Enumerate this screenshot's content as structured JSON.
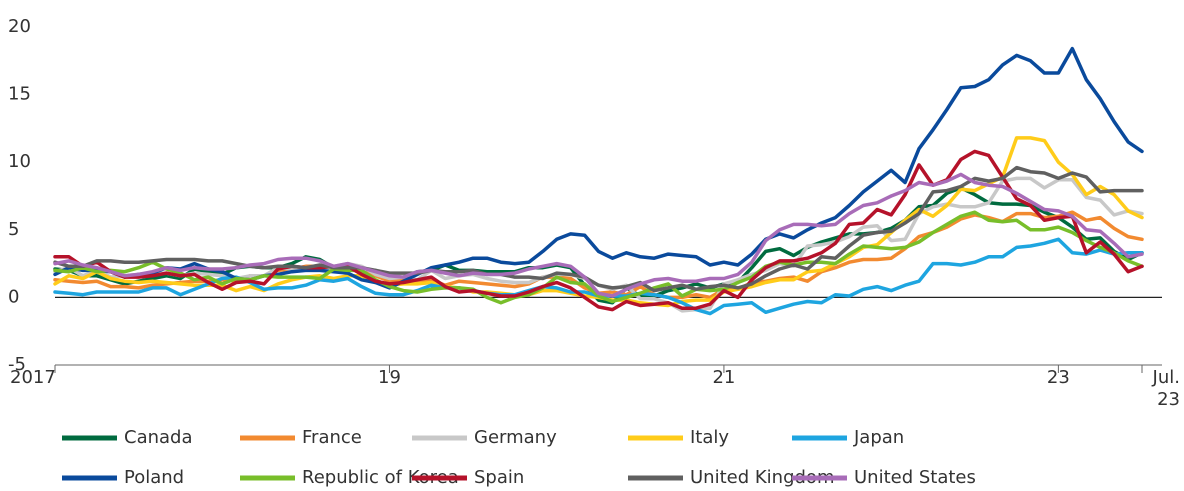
{
  "chart_data": {
    "type": "line",
    "categories": [
      "2017",
      null,
      null,
      null,
      null,
      null,
      null,
      null,
      null,
      null,
      null,
      null,
      null,
      null,
      null,
      null,
      null,
      null,
      null,
      null,
      null,
      null,
      null,
      null,
      "19",
      null,
      null,
      null,
      null,
      null,
      null,
      null,
      null,
      null,
      null,
      null,
      null,
      null,
      null,
      null,
      null,
      null,
      null,
      null,
      null,
      null,
      null,
      null,
      "21",
      null,
      null,
      null,
      null,
      null,
      null,
      null,
      null,
      null,
      null,
      null,
      null,
      null,
      null,
      null,
      null,
      null,
      null,
      null,
      null,
      null,
      null,
      null,
      "23",
      null,
      null,
      null,
      null,
      null,
      "Jul. 23"
    ],
    "ylim": [
      -5,
      20
    ],
    "yticks": [
      -5,
      0,
      5,
      10,
      15,
      20
    ],
    "grid": false,
    "legend": "bottom",
    "series": [
      {
        "name": "Canada",
        "color": "#006b3f",
        "values": [
          2.1,
          2.0,
          1.6,
          1.6,
          1.3,
          1.0,
          1.2,
          1.4,
          1.6,
          1.4,
          2.1,
          1.9,
          1.7,
          2.2,
          2.3,
          2.2,
          2.2,
          2.5,
          3.0,
          2.8,
          2.2,
          2.4,
          1.7,
          2.0,
          1.4,
          1.5,
          1.9,
          2.0,
          2.4,
          2.0,
          2.0,
          1.9,
          1.9,
          1.9,
          2.2,
          2.2,
          2.4,
          2.2,
          0.9,
          -0.2,
          -0.4,
          0.7,
          0.1,
          0.1,
          0.5,
          0.7,
          1.0,
          0.7,
          1.0,
          1.1,
          2.2,
          3.4,
          3.6,
          3.1,
          3.7,
          4.1,
          4.4,
          4.7,
          4.7,
          4.8,
          5.1,
          5.7,
          6.7,
          6.8,
          7.7,
          8.1,
          7.6,
          7.0,
          6.9,
          6.9,
          6.8,
          6.3,
          5.9,
          5.2,
          4.3,
          4.4,
          3.4,
          2.8,
          3.3
        ]
      },
      {
        "name": "France",
        "color": "#f28a30",
        "values": [
          1.3,
          1.2,
          1.1,
          1.2,
          0.8,
          0.8,
          0.7,
          0.9,
          1.0,
          1.1,
          1.2,
          1.2,
          1.3,
          1.2,
          1.6,
          1.6,
          2.0,
          2.1,
          2.3,
          2.3,
          2.2,
          2.2,
          1.9,
          1.6,
          1.2,
          1.3,
          1.1,
          1.3,
          0.9,
          1.2,
          1.1,
          1.0,
          0.9,
          0.8,
          1.0,
          1.5,
          1.5,
          1.4,
          0.7,
          0.3,
          0.4,
          0.2,
          0.8,
          0.2,
          0.0,
          0.0,
          0.2,
          0.0,
          0.6,
          0.6,
          1.1,
          1.2,
          1.4,
          1.5,
          1.2,
          1.9,
          2.2,
          2.6,
          2.8,
          2.8,
          2.9,
          3.6,
          4.5,
          4.8,
          5.2,
          5.8,
          6.1,
          5.9,
          5.6,
          6.2,
          6.2,
          5.9,
          6.0,
          6.3,
          5.7,
          5.9,
          5.1,
          4.5,
          4.3
        ]
      },
      {
        "name": "Germany",
        "color": "#c8c8c8",
        "values": [
          1.9,
          2.2,
          1.6,
          2.0,
          1.5,
          1.6,
          1.7,
          1.8,
          1.8,
          1.6,
          1.8,
          1.7,
          1.6,
          1.4,
          1.6,
          1.6,
          2.2,
          2.1,
          2.0,
          2.0,
          2.3,
          2.5,
          2.3,
          1.7,
          1.4,
          1.5,
          1.3,
          2.0,
          1.4,
          1.6,
          1.7,
          1.4,
          1.2,
          1.1,
          1.1,
          1.5,
          1.7,
          1.7,
          1.4,
          0.9,
          0.6,
          0.9,
          -0.1,
          -0.1,
          -0.4,
          -1.0,
          -0.9,
          -0.8,
          1.0,
          1.3,
          1.7,
          2.0,
          2.5,
          2.3,
          3.8,
          3.9,
          4.1,
          4.5,
          5.2,
          5.3,
          4.2,
          4.3,
          6.2,
          6.7,
          6.9,
          6.7,
          6.7,
          7.0,
          8.6,
          8.8,
          8.8,
          8.1,
          8.7,
          8.7,
          7.4,
          7.2,
          6.1,
          6.4,
          6.2
        ]
      },
      {
        "name": "Italy",
        "color": "#ffcc1a",
        "values": [
          1.0,
          1.6,
          1.4,
          1.9,
          1.4,
          1.2,
          1.1,
          1.2,
          1.1,
          1.0,
          0.9,
          0.9,
          0.9,
          0.5,
          0.8,
          0.5,
          1.0,
          1.3,
          1.5,
          1.6,
          1.4,
          1.6,
          1.6,
          1.1,
          0.9,
          1.0,
          1.0,
          1.1,
          0.8,
          0.7,
          0.4,
          0.4,
          0.3,
          0.2,
          0.2,
          0.5,
          0.5,
          0.3,
          0.1,
          0.0,
          -0.2,
          -0.2,
          -0.4,
          -0.5,
          -0.6,
          -0.3,
          -0.2,
          -0.2,
          0.4,
          0.6,
          0.8,
          1.1,
          1.3,
          1.3,
          1.9,
          2.0,
          2.5,
          3.0,
          3.7,
          3.9,
          4.8,
          5.7,
          6.5,
          6.0,
          6.8,
          8.0,
          7.9,
          8.4,
          8.9,
          11.8,
          11.8,
          11.6,
          10.0,
          9.1,
          7.6,
          8.2,
          7.6,
          6.4,
          5.9
        ]
      },
      {
        "name": "Japan",
        "color": "#1ea5e0",
        "values": [
          0.4,
          0.3,
          0.2,
          0.4,
          0.4,
          0.4,
          0.4,
          0.7,
          0.7,
          0.2,
          0.6,
          1.0,
          1.4,
          1.5,
          1.1,
          0.6,
          0.7,
          0.7,
          0.9,
          1.3,
          1.2,
          1.4,
          0.8,
          0.3,
          0.2,
          0.2,
          0.5,
          0.9,
          0.7,
          0.7,
          0.5,
          0.3,
          0.2,
          0.2,
          0.5,
          0.8,
          0.7,
          0.4,
          0.4,
          0.1,
          0.1,
          0.1,
          0.3,
          0.2,
          0.0,
          -0.4,
          -0.9,
          -1.2,
          -0.6,
          -0.5,
          -0.4,
          -1.1,
          -0.8,
          -0.5,
          -0.3,
          -0.4,
          0.2,
          0.1,
          0.6,
          0.8,
          0.5,
          0.9,
          1.2,
          2.5,
          2.5,
          2.4,
          2.6,
          3.0,
          3.0,
          3.7,
          3.8,
          4.0,
          4.3,
          3.3,
          3.2,
          3.5,
          3.2,
          3.3,
          3.3
        ]
      },
      {
        "name": "Poland",
        "color": "#0a4a9c",
        "values": [
          1.7,
          2.2,
          2.0,
          2.0,
          1.9,
          1.5,
          1.7,
          1.8,
          2.2,
          2.1,
          2.5,
          2.1,
          1.9,
          1.4,
          1.3,
          1.6,
          1.7,
          1.9,
          2.0,
          2.0,
          1.9,
          1.8,
          1.3,
          1.1,
          0.7,
          1.2,
          1.7,
          2.2,
          2.4,
          2.6,
          2.9,
          2.9,
          2.6,
          2.5,
          2.6,
          3.4,
          4.3,
          4.7,
          4.6,
          3.4,
          2.9,
          3.3,
          3.0,
          2.9,
          3.2,
          3.1,
          3.0,
          2.4,
          2.6,
          2.4,
          3.2,
          4.3,
          4.7,
          4.4,
          5.0,
          5.5,
          5.9,
          6.8,
          7.8,
          8.6,
          9.4,
          8.5,
          11.0,
          12.4,
          13.9,
          15.5,
          15.6,
          16.1,
          17.2,
          17.9,
          17.5,
          16.6,
          16.6,
          18.4,
          16.1,
          14.7,
          13.0,
          11.5,
          10.8
        ]
      },
      {
        "name": "Republic of Korea",
        "color": "#78be2a",
        "values": [
          2.0,
          1.9,
          2.2,
          1.9,
          2.0,
          1.9,
          2.2,
          2.6,
          2.1,
          1.8,
          1.3,
          1.5,
          1.0,
          1.4,
          1.3,
          1.6,
          1.5,
          1.5,
          1.5,
          1.4,
          2.1,
          2.0,
          2.0,
          1.3,
          0.8,
          0.5,
          0.4,
          0.6,
          0.7,
          0.7,
          0.6,
          0.0,
          -0.4,
          0.0,
          0.2,
          0.7,
          1.5,
          1.1,
          1.0,
          0.1,
          -0.3,
          0.0,
          0.3,
          0.7,
          1.0,
          0.1,
          0.6,
          0.5,
          0.6,
          1.1,
          1.5,
          2.3,
          2.6,
          2.4,
          2.6,
          2.6,
          2.5,
          3.2,
          3.8,
          3.7,
          3.6,
          3.7,
          4.1,
          4.8,
          5.4,
          6.0,
          6.3,
          5.7,
          5.6,
          5.7,
          5.0,
          5.0,
          5.2,
          4.8,
          4.2,
          3.7,
          3.3,
          2.7,
          2.3
        ]
      },
      {
        "name": "Spain",
        "color": "#b5122a",
        "values": [
          3.0,
          3.0,
          2.3,
          2.6,
          1.9,
          1.5,
          1.5,
          1.6,
          1.8,
          1.6,
          1.7,
          1.1,
          0.6,
          1.1,
          1.2,
          1.0,
          2.1,
          2.3,
          2.2,
          2.2,
          2.3,
          2.3,
          1.7,
          1.2,
          1.0,
          1.1,
          1.3,
          1.5,
          0.8,
          0.4,
          0.5,
          0.3,
          0.1,
          0.1,
          0.4,
          0.8,
          1.1,
          0.7,
          0.0,
          -0.7,
          -0.9,
          -0.3,
          -0.6,
          -0.5,
          -0.4,
          -0.8,
          -0.8,
          -0.5,
          0.5,
          0.0,
          1.3,
          2.2,
          2.7,
          2.7,
          2.9,
          3.3,
          4.0,
          5.4,
          5.5,
          6.5,
          6.1,
          7.6,
          9.8,
          8.3,
          8.7,
          10.2,
          10.8,
          10.5,
          8.9,
          7.3,
          6.8,
          5.7,
          5.9,
          6.0,
          3.3,
          4.1,
          3.2,
          1.9,
          2.3
        ]
      },
      {
        "name": "United Kingdom",
        "color": "#606060",
        "values": [
          2.6,
          2.3,
          2.3,
          2.7,
          2.7,
          2.6,
          2.6,
          2.7,
          2.8,
          2.8,
          2.8,
          2.7,
          2.7,
          2.5,
          2.3,
          2.2,
          2.3,
          2.3,
          2.2,
          2.4,
          2.2,
          2.2,
          2.2,
          2.0,
          1.8,
          1.8,
          1.8,
          2.0,
          1.9,
          1.9,
          2.0,
          1.7,
          1.7,
          1.5,
          1.5,
          1.4,
          1.8,
          1.7,
          1.5,
          0.9,
          0.7,
          0.8,
          1.1,
          0.5,
          0.7,
          0.9,
          0.6,
          0.8,
          0.9,
          0.7,
          1.0,
          1.6,
          2.1,
          2.4,
          2.1,
          3.0,
          2.9,
          3.8,
          4.6,
          4.8,
          4.9,
          5.5,
          6.2,
          7.8,
          7.9,
          8.2,
          8.8,
          8.6,
          8.8,
          9.6,
          9.3,
          9.2,
          8.8,
          9.2,
          8.9,
          7.8,
          7.9,
          7.9,
          7.9
        ]
      },
      {
        "name": "United States",
        "color": "#a86cb8",
        "values": [
          2.5,
          2.7,
          2.4,
          2.2,
          1.9,
          1.6,
          1.7,
          1.9,
          2.2,
          2.0,
          2.2,
          2.1,
          2.1,
          2.2,
          2.4,
          2.5,
          2.8,
          2.9,
          2.9,
          2.7,
          2.3,
          2.5,
          2.2,
          1.9,
          1.6,
          1.5,
          1.9,
          2.0,
          1.8,
          1.6,
          1.8,
          1.7,
          1.7,
          1.8,
          2.1,
          2.3,
          2.5,
          2.3,
          1.5,
          0.3,
          0.1,
          0.6,
          1.0,
          1.3,
          1.4,
          1.2,
          1.2,
          1.4,
          1.4,
          1.7,
          2.6,
          4.2,
          5.0,
          5.4,
          5.4,
          5.3,
          5.4,
          6.2,
          6.8,
          7.0,
          7.5,
          7.9,
          8.5,
          8.3,
          8.6,
          9.1,
          8.5,
          8.3,
          8.2,
          7.7,
          7.1,
          6.5,
          6.4,
          6.0,
          5.0,
          4.9,
          4.0,
          3.0,
          3.2
        ]
      }
    ]
  }
}
